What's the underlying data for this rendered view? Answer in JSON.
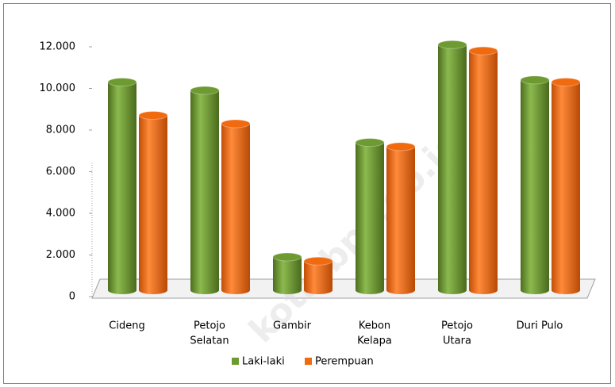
{
  "chart_data": {
    "type": "bar3d",
    "watermark": "kota.bps.go.id",
    "categories": [
      [
        "Cideng"
      ],
      [
        "Petojo",
        "Selatan"
      ],
      [
        "Gambir"
      ],
      [
        "Kebon",
        "Kelapa"
      ],
      [
        "Petojo",
        "Utara"
      ],
      [
        "Duri Pulo"
      ]
    ],
    "series": [
      {
        "name": "Laki-laki",
        "color": "#6e9a32",
        "values": [
          10000,
          9600,
          1600,
          7100,
          11800,
          10100
        ]
      },
      {
        "name": "Perempuan",
        "color": "#f06a10",
        "values": [
          8400,
          8000,
          1400,
          6900,
          11500,
          10000
        ]
      }
    ],
    "ylim": [
      0,
      12000
    ],
    "yticks": [
      0,
      {
        "value": 2000,
        "label": "2.000"
      },
      {
        "value": 4000,
        "label": "4.000"
      },
      {
        "value": 6000,
        "label": "6.000"
      },
      {
        "value": 8000,
        "label": "8.000"
      },
      {
        "value": 10000,
        "label": "10.000"
      },
      {
        "value": 12000,
        "label": "12.000"
      }
    ],
    "legend": "bottom"
  }
}
